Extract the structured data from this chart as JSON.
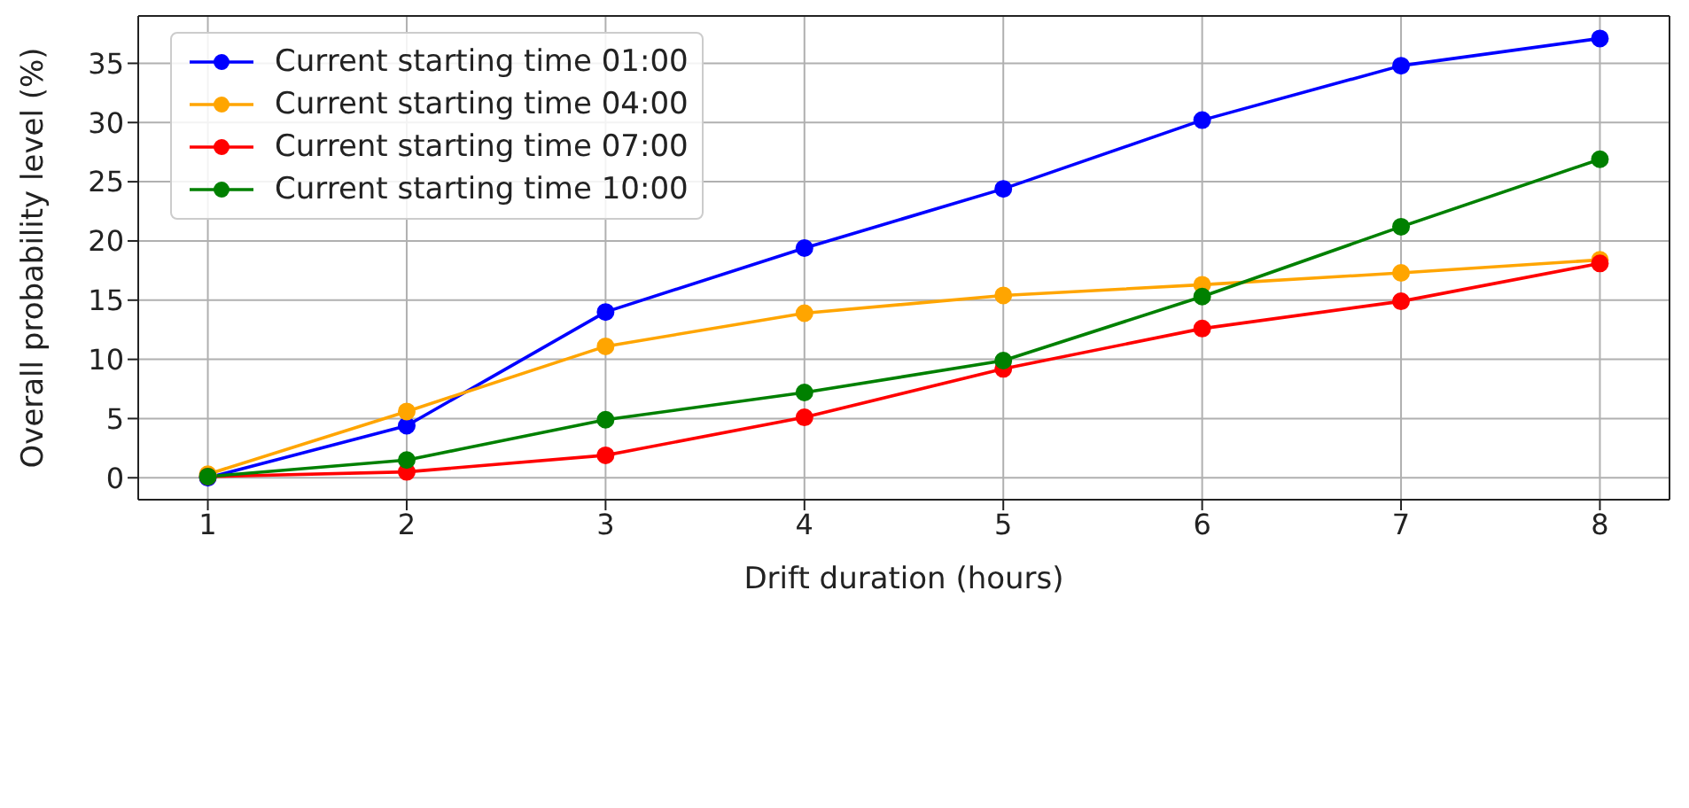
{
  "chart_data": {
    "type": "line",
    "xlabel": "Drift duration (hours)",
    "ylabel": "Overall probability level (%)",
    "x": [
      1,
      2,
      3,
      4,
      5,
      6,
      7,
      8
    ],
    "series": [
      {
        "name": "Current starting time 01:00",
        "color": "#0000ff",
        "values": [
          0,
          4.4,
          14.0,
          19.4,
          24.4,
          30.2,
          34.8,
          37.1
        ]
      },
      {
        "name": "Current starting time 04:00",
        "color": "#ffa500",
        "values": [
          0.3,
          5.6,
          11.1,
          13.9,
          15.4,
          16.3,
          17.3,
          18.4
        ]
      },
      {
        "name": "Current starting time 07:00",
        "color": "#ff0000",
        "values": [
          0.1,
          0.5,
          1.9,
          5.1,
          9.2,
          12.6,
          14.9,
          18.1
        ]
      },
      {
        "name": "Current starting time 10:00",
        "color": "#008000",
        "values": [
          0.1,
          1.5,
          4.9,
          7.2,
          9.9,
          15.3,
          21.2,
          26.9
        ]
      }
    ],
    "xlim": [
      0.65,
      8.35
    ],
    "ylim": [
      -1.85,
      39
    ],
    "xticks": [
      1,
      2,
      3,
      4,
      5,
      6,
      7,
      8
    ],
    "yticks": [
      0,
      5,
      10,
      15,
      20,
      25,
      30,
      35
    ],
    "grid": true,
    "legend": "top left",
    "marker": "circle",
    "line_style": "solid"
  }
}
